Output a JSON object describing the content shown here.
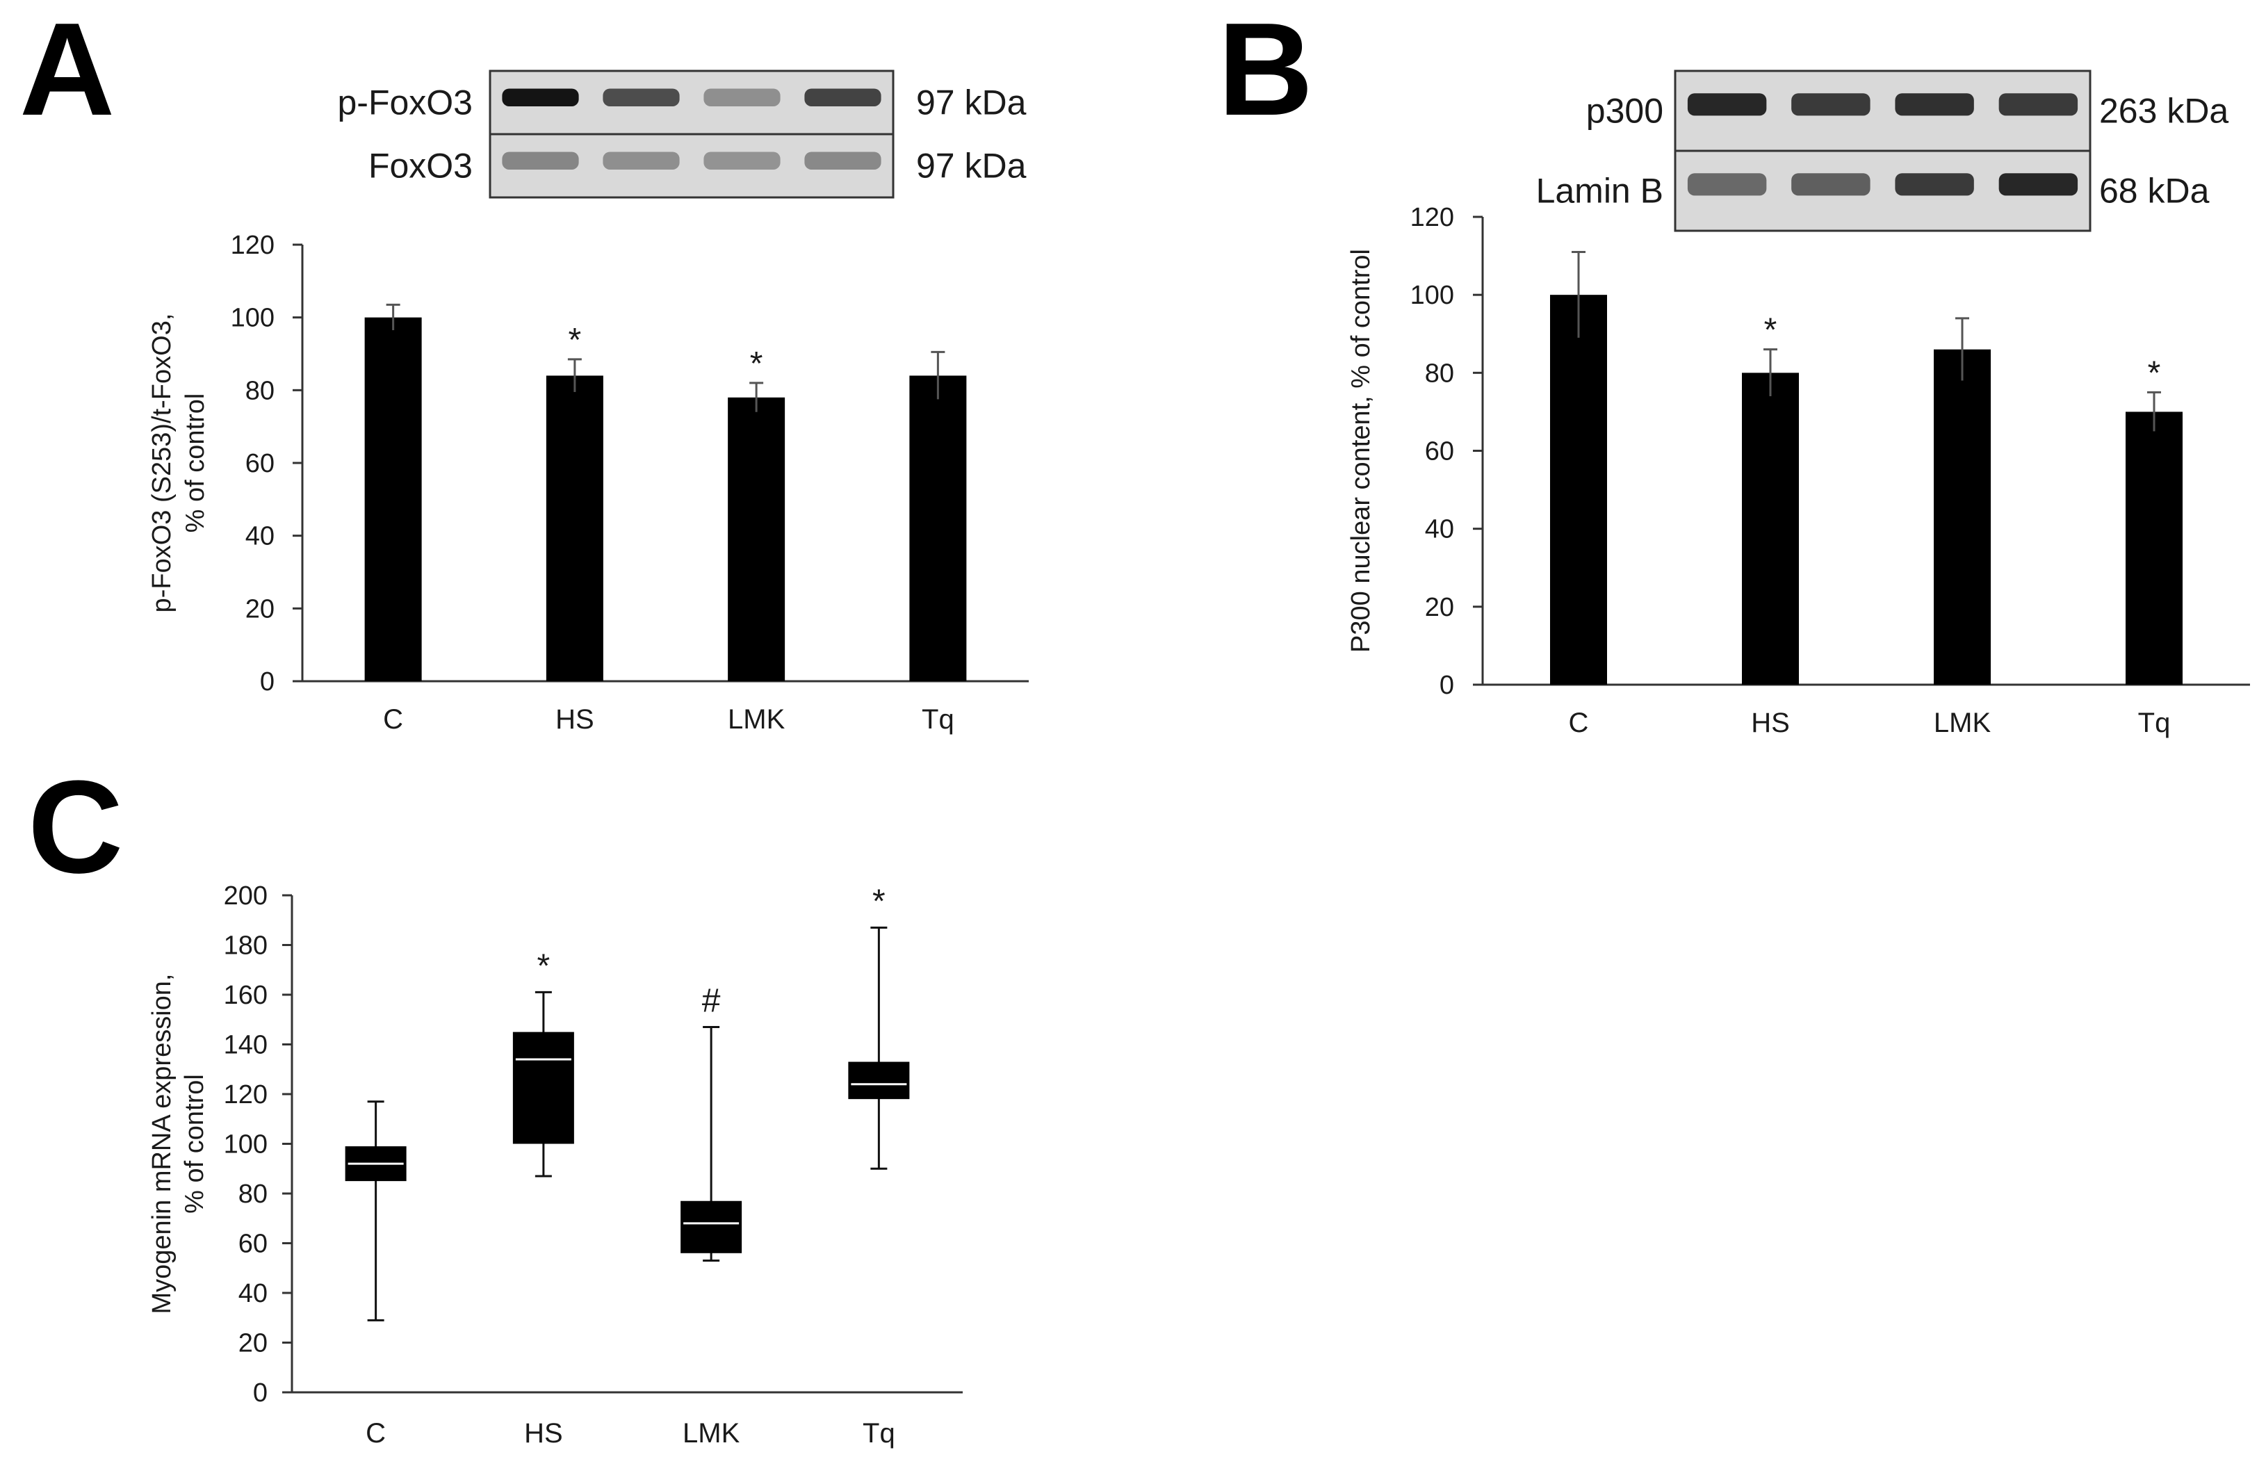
{
  "colors": {
    "bar": "#000000",
    "axis": "#333333",
    "box_median": "#ffffff",
    "blot_background": "#d9d9d9"
  },
  "chart_data": [
    {
      "panel": "A",
      "type": "bar",
      "categories": [
        "C",
        "HS",
        "LMK",
        "Tq"
      ],
      "values": [
        100,
        84,
        78,
        84
      ],
      "errors": [
        3.5,
        4.5,
        4,
        6.5
      ],
      "annotations": [
        "",
        "*",
        "*",
        ""
      ],
      "ylabel": "p-FoxO3 (S253)/t-FoxO3,\n% of control",
      "ylabel_lines": [
        "p-FoxO3 (S253)/t-FoxO3,",
        "% of control"
      ],
      "ylim": [
        0,
        120
      ],
      "yticks": [
        0,
        20,
        40,
        60,
        80,
        100,
        120
      ],
      "blot": {
        "rows": [
          {
            "label": "p-FoxO3",
            "size": "97 kDa",
            "intensity": [
              0.95,
              0.65,
              0.3,
              0.7
            ]
          },
          {
            "label": "FoxO3",
            "size": "97 kDa",
            "intensity": [
              0.35,
              0.3,
              0.28,
              0.33
            ]
          }
        ]
      }
    },
    {
      "panel": "B",
      "type": "bar",
      "categories": [
        "C",
        "HS",
        "LMK",
        "Tq"
      ],
      "values": [
        100,
        80,
        86,
        70
      ],
      "errors": [
        11,
        6,
        8,
        5
      ],
      "annotations": [
        "",
        "*",
        "",
        "*"
      ],
      "ylabel": "P300 nuclear content, % of control",
      "ylim": [
        0,
        120
      ],
      "yticks": [
        0,
        20,
        40,
        60,
        80,
        100,
        120
      ],
      "blot": {
        "rows": [
          {
            "label": "p300",
            "size": "263 kDa",
            "intensity": [
              0.85,
              0.75,
              0.8,
              0.75
            ]
          },
          {
            "label": "Lamin B",
            "size": "68 kDa",
            "intensity": [
              0.5,
              0.55,
              0.75,
              0.85
            ]
          }
        ]
      }
    },
    {
      "panel": "C",
      "type": "box",
      "categories": [
        "C",
        "HS",
        "LMK",
        "Tq"
      ],
      "boxes": [
        {
          "min": 29,
          "q1": 85,
          "median": 92,
          "q3": 99,
          "max": 117
        },
        {
          "min": 87,
          "q1": 100,
          "median": 134,
          "q3": 145,
          "max": 161
        },
        {
          "min": 53,
          "q1": 56,
          "median": 68,
          "q3": 77,
          "max": 147
        },
        {
          "min": 90,
          "q1": 118,
          "median": 124,
          "q3": 133,
          "max": 187
        }
      ],
      "annotations": [
        "",
        "*",
        "#",
        "*"
      ],
      "ylabel": "Myogenin mRNA expression,\n% of control",
      "ylabel_lines": [
        "Myogenin mRNA expression,",
        "% of control"
      ],
      "ylim": [
        0,
        200
      ],
      "yticks": [
        0,
        20,
        40,
        60,
        80,
        100,
        120,
        140,
        160,
        180,
        200
      ]
    }
  ]
}
